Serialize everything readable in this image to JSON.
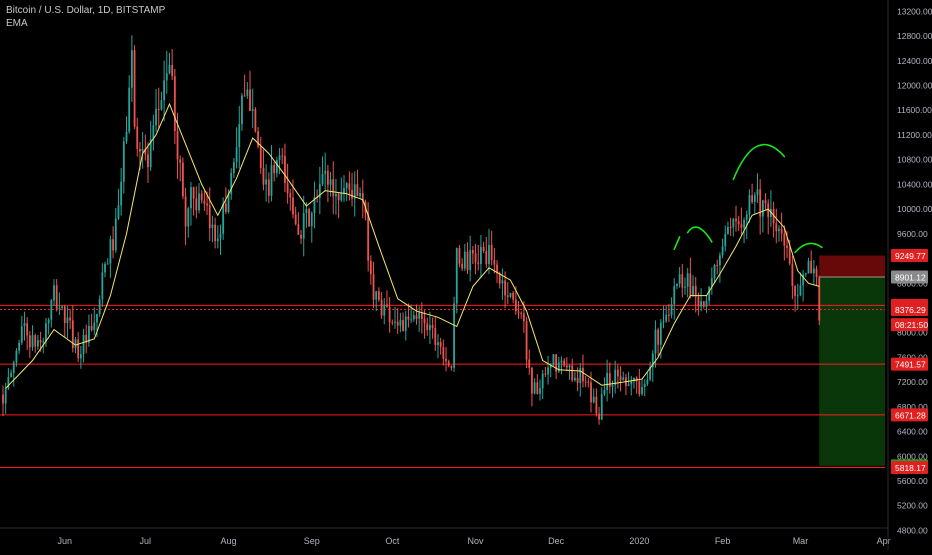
{
  "header": {
    "symbol_title": "Bitcoin / U.S. Dollar, 1D, BITSTAMP",
    "indicator": "EMA"
  },
  "colors": {
    "background": "#000000",
    "up_candle": "#26a69a",
    "down_candle": "#ef5350",
    "ema": "#f5e86c",
    "level_line": "#ff1a1a",
    "stop_zone": "#7a0a0a",
    "target_zone": "#0b3d0b",
    "annotation_arc": "#19e619",
    "axis_text": "#b2b5be",
    "label_red": "#e02020",
    "label_green": "#1fa21f",
    "label_gray": "#8a8a8a"
  },
  "chart_data": {
    "type": "candlestick",
    "title": "Bitcoin / U.S. Dollar, 1D, BITSTAMP",
    "indicator": "EMA",
    "ylim": [
      4500,
      13400
    ],
    "y_ticks": [
      "4800.00",
      "5200.00",
      "5600.00",
      "6000.00",
      "6400.00",
      "6800.00",
      "7200.00",
      "7600.00",
      "8000.00",
      "8400.00",
      "8800.00",
      "9200.00",
      "9600.00",
      "10000.00",
      "10400.00",
      "10800.00",
      "11200.00",
      "11600.00",
      "12000.00",
      "12400.00",
      "12800.00",
      "13200.00"
    ],
    "x_ticks": [
      "Jun",
      "Jul",
      "Aug",
      "Sep",
      "Oct",
      "Nov",
      "Dec",
      "2020",
      "Feb",
      "Mar",
      "Apr"
    ],
    "price_path": [
      [
        "2019-05-10",
        7000
      ],
      [
        "2019-05-14",
        7700
      ],
      [
        "2019-05-16",
        8150
      ],
      [
        "2019-05-20",
        7800
      ],
      [
        "2019-05-24",
        7900
      ],
      [
        "2019-05-28",
        8600
      ],
      [
        "2019-06-02",
        8150
      ],
      [
        "2019-06-06",
        7700
      ],
      [
        "2019-06-12",
        8050
      ],
      [
        "2019-06-16",
        9050
      ],
      [
        "2019-06-20",
        9650
      ],
      [
        "2019-06-22",
        10400
      ],
      [
        "2019-06-26",
        12450
      ],
      [
        "2019-06-27",
        11300
      ],
      [
        "2019-07-02",
        10700
      ],
      [
        "2019-07-08",
        12100
      ],
      [
        "2019-07-10",
        12400
      ],
      [
        "2019-07-12",
        11400
      ],
      [
        "2019-07-16",
        9800
      ],
      [
        "2019-07-18",
        10300
      ],
      [
        "2019-07-24",
        9850
      ],
      [
        "2019-07-27",
        9550
      ],
      [
        "2019-07-31",
        10050
      ],
      [
        "2019-08-06",
        11650
      ],
      [
        "2019-08-10",
        11850
      ],
      [
        "2019-08-14",
        10200
      ],
      [
        "2019-08-20",
        10800
      ],
      [
        "2019-08-24",
        10100
      ],
      [
        "2019-08-28",
        9700
      ],
      [
        "2019-09-01",
        9900
      ],
      [
        "2019-09-06",
        10600
      ],
      [
        "2019-09-10",
        10200
      ],
      [
        "2019-09-14",
        10400
      ],
      [
        "2019-09-20",
        10100
      ],
      [
        "2019-09-24",
        8600
      ],
      [
        "2019-09-30",
        8300
      ],
      [
        "2019-10-06",
        8100
      ],
      [
        "2019-10-12",
        8300
      ],
      [
        "2019-10-18",
        7900
      ],
      [
        "2019-10-23",
        7450
      ],
      [
        "2019-10-25",
        9200
      ],
      [
        "2019-10-30",
        9150
      ],
      [
        "2019-11-05",
        9300
      ],
      [
        "2019-11-12",
        8700
      ],
      [
        "2019-11-18",
        8350
      ],
      [
        "2019-11-22",
        7100
      ],
      [
        "2019-11-25",
        7100
      ],
      [
        "2019-11-30",
        7500
      ],
      [
        "2019-12-05",
        7400
      ],
      [
        "2019-12-10",
        7300
      ],
      [
        "2019-12-17",
        6700
      ],
      [
        "2019-12-19",
        7200
      ],
      [
        "2019-12-24",
        7300
      ],
      [
        "2019-12-30",
        7250
      ],
      [
        "2020-01-02",
        7000
      ],
      [
        "2020-01-06",
        7800
      ],
      [
        "2020-01-10",
        8100
      ],
      [
        "2020-01-14",
        8800
      ],
      [
        "2020-01-18",
        8900
      ],
      [
        "2020-01-22",
        8650
      ],
      [
        "2020-01-26",
        8400
      ],
      [
        "2020-01-31",
        9350
      ],
      [
        "2020-02-06",
        9700
      ],
      [
        "2020-02-10",
        10100
      ],
      [
        "2020-02-13",
        10300
      ],
      [
        "2020-02-17",
        9900
      ],
      [
        "2020-02-21",
        9700
      ],
      [
        "2020-02-25",
        9300
      ],
      [
        "2020-02-28",
        8700
      ],
      [
        "2020-03-02",
        8800
      ],
      [
        "2020-03-05",
        9100
      ],
      [
        "2020-03-07",
        8900
      ],
      [
        "2020-03-08",
        8200
      ]
    ],
    "ema_values": [
      [
        "2019-05-10",
        7100
      ],
      [
        "2019-05-20",
        7550
      ],
      [
        "2019-05-28",
        8050
      ],
      [
        "2019-06-05",
        7800
      ],
      [
        "2019-06-12",
        7900
      ],
      [
        "2019-06-18",
        8600
      ],
      [
        "2019-06-24",
        9600
      ],
      [
        "2019-06-30",
        10900
      ],
      [
        "2019-07-05",
        11200
      ],
      [
        "2019-07-10",
        11700
      ],
      [
        "2019-07-16",
        11050
      ],
      [
        "2019-07-22",
        10400
      ],
      [
        "2019-07-28",
        9900
      ],
      [
        "2019-08-04",
        10500
      ],
      [
        "2019-08-10",
        11150
      ],
      [
        "2019-08-16",
        10900
      ],
      [
        "2019-08-22",
        10550
      ],
      [
        "2019-08-30",
        10050
      ],
      [
        "2019-09-06",
        10300
      ],
      [
        "2019-09-14",
        10250
      ],
      [
        "2019-09-20",
        10150
      ],
      [
        "2019-09-26",
        9400
      ],
      [
        "2019-10-03",
        8550
      ],
      [
        "2019-10-10",
        8350
      ],
      [
        "2019-10-18",
        8250
      ],
      [
        "2019-10-25",
        8100
      ],
      [
        "2019-10-31",
        8750
      ],
      [
        "2019-11-06",
        9050
      ],
      [
        "2019-11-14",
        8850
      ],
      [
        "2019-11-20",
        8350
      ],
      [
        "2019-11-26",
        7550
      ],
      [
        "2019-12-02",
        7400
      ],
      [
        "2019-12-10",
        7380
      ],
      [
        "2019-12-18",
        7150
      ],
      [
        "2019-12-26",
        7200
      ],
      [
        "2020-01-02",
        7250
      ],
      [
        "2020-01-08",
        7600
      ],
      [
        "2020-01-14",
        8150
      ],
      [
        "2020-01-20",
        8600
      ],
      [
        "2020-01-26",
        8600
      ],
      [
        "2020-01-31",
        8950
      ],
      [
        "2020-02-06",
        9400
      ],
      [
        "2020-02-12",
        9900
      ],
      [
        "2020-02-18",
        10000
      ],
      [
        "2020-02-24",
        9700
      ],
      [
        "2020-02-29",
        9000
      ],
      [
        "2020-03-04",
        8800
      ],
      [
        "2020-03-08",
        8750
      ]
    ],
    "horizontal_levels": [
      8443.11,
      8376.29,
      7491.57,
      6671.28,
      5818.17
    ],
    "position_zone": {
      "entry": 8901.12,
      "stop": 9249.77,
      "target": 5845.1,
      "start": "2020-03-08",
      "end": "2020-04-06"
    },
    "price_labels": [
      {
        "value": 9249.77,
        "text": "9249.77",
        "style": "red"
      },
      {
        "value": 8901.12,
        "text": "8901.12",
        "style": "gray"
      },
      {
        "value": 8443.11,
        "text": "8443.11",
        "style": "red"
      },
      {
        "value": 8376.29,
        "text": "8376.29",
        "style": "red"
      },
      {
        "value": 8130,
        "text": "08:21:50",
        "style": "red"
      },
      {
        "value": 7491.57,
        "text": "7491.57",
        "style": "red"
      },
      {
        "value": 6671.28,
        "text": "6671.28",
        "style": "red"
      },
      {
        "value": 5845.1,
        "text": "5845.10",
        "style": "green"
      },
      {
        "value": 5818.17,
        "text": "5818.17",
        "style": "red"
      }
    ],
    "annotations": [
      {
        "type": "stroke",
        "points": [
          [
            "2020-01-14",
            9350
          ],
          [
            "2020-01-16",
            9550
          ]
        ]
      },
      {
        "type": "arc",
        "points": [
          [
            "2020-01-19",
            9620
          ],
          [
            "2020-01-23",
            9700
          ],
          [
            "2020-01-28",
            9470
          ]
        ]
      },
      {
        "type": "arc",
        "points": [
          [
            "2020-02-05",
            10480
          ],
          [
            "2020-02-14",
            11020
          ],
          [
            "2020-02-24",
            10850
          ]
        ]
      },
      {
        "type": "arc",
        "points": [
          [
            "2020-02-28",
            9300
          ],
          [
            "2020-03-04",
            9440
          ],
          [
            "2020-03-09",
            9380
          ]
        ]
      }
    ]
  }
}
